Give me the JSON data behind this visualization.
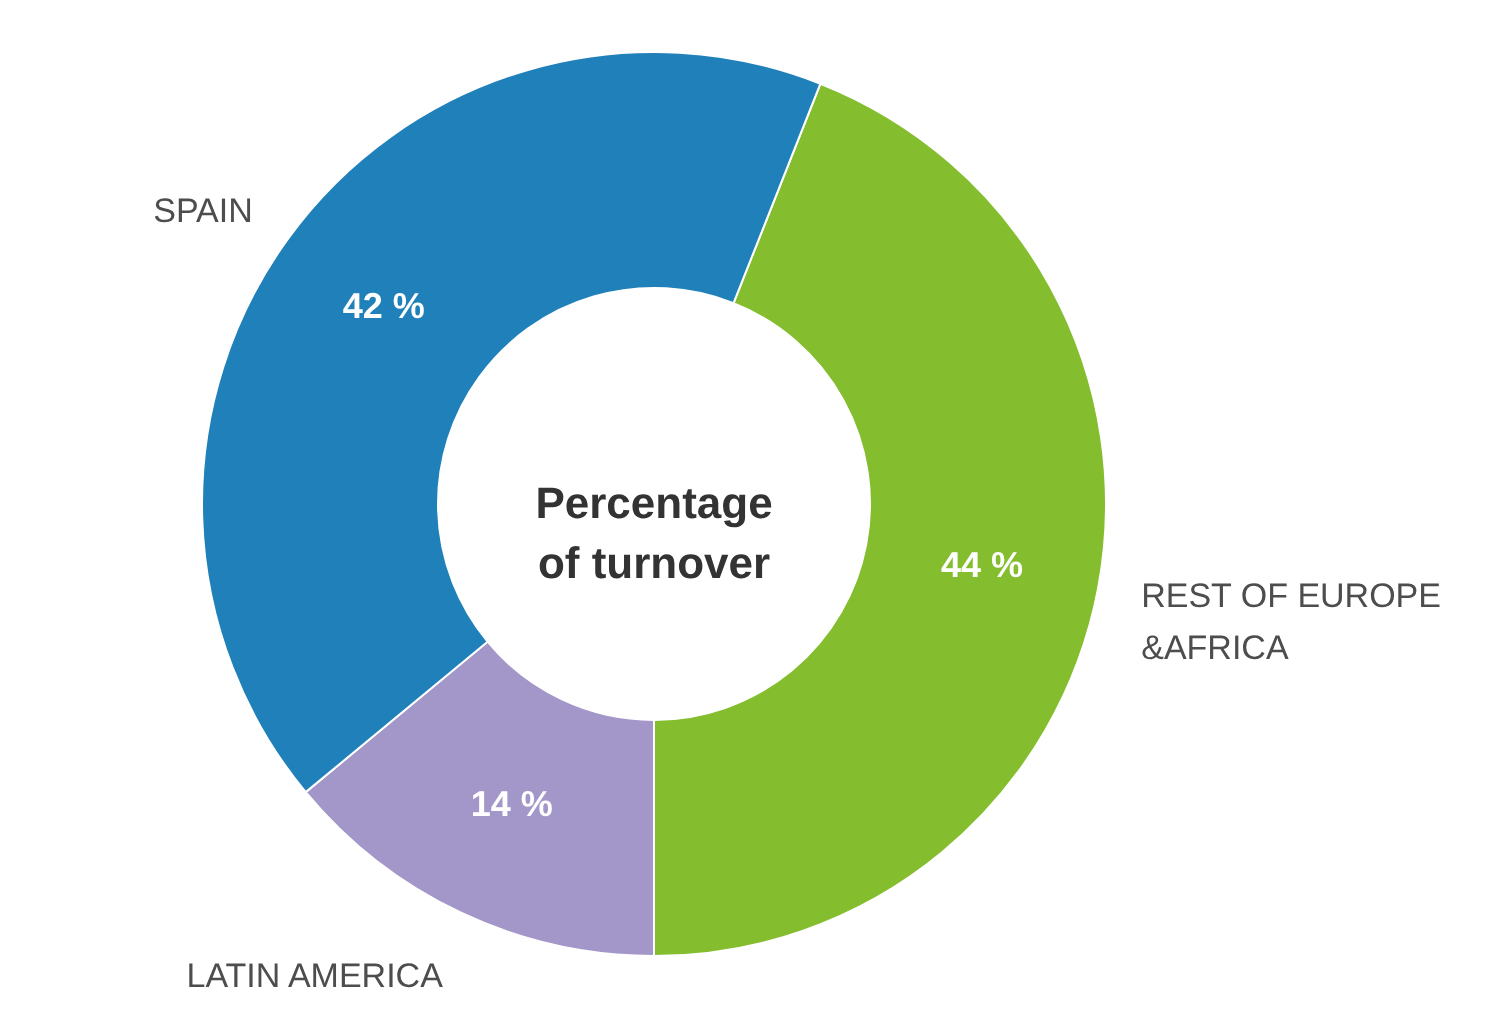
{
  "chart_data": {
    "type": "donut",
    "title": "Percentage of turnover",
    "categories": [
      "REST OF EUROPE &AFRICA",
      "LATIN AMERICA",
      "SPAIN"
    ],
    "values": [
      44,
      14,
      42
    ],
    "colors": [
      "#84bd2d",
      "#a397c9",
      "#2080b9"
    ],
    "value_labels": [
      "44 %",
      "14 %",
      "42 %"
    ]
  }
}
